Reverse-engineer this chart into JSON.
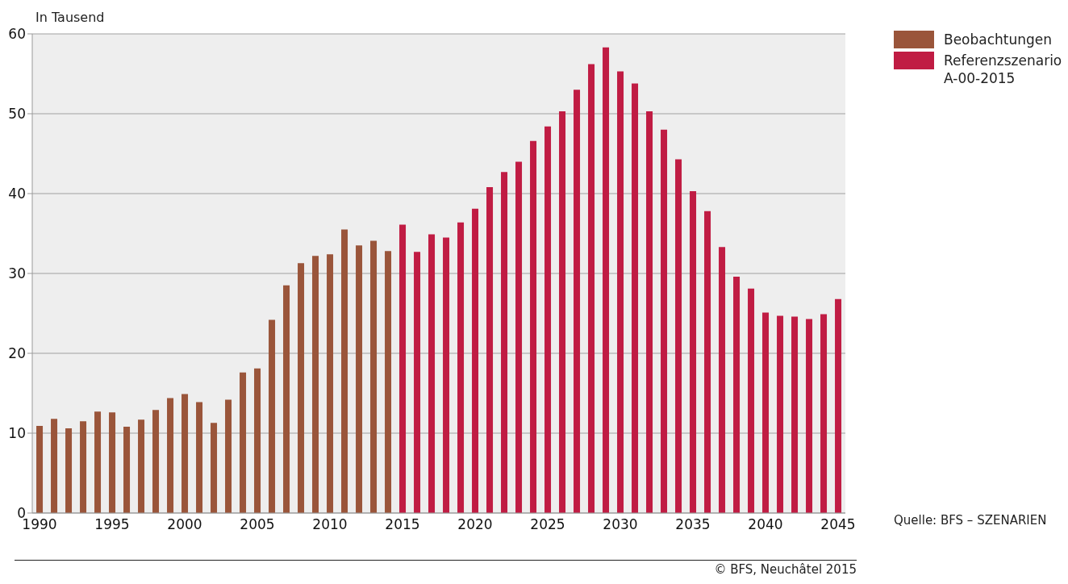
{
  "chart_data": {
    "type": "bar",
    "ylabel": "In Tausend",
    "categories": [
      "1990",
      null,
      null,
      null,
      null,
      "1995",
      null,
      null,
      null,
      null,
      "2000",
      null,
      null,
      null,
      null,
      "2005",
      null,
      null,
      null,
      null,
      "2010",
      null,
      null,
      null,
      null,
      "2015",
      null,
      null,
      null,
      null,
      "2020",
      null,
      null,
      null,
      null,
      "2025",
      null,
      null,
      null,
      null,
      "2030",
      null,
      null,
      null,
      null,
      "2035",
      null,
      null,
      null,
      null,
      "2040",
      null,
      null,
      null,
      null,
      "2045"
    ],
    "series": [
      {
        "name": "Beobachtungen",
        "color": "#9a553a",
        "values": [
          10.9,
          11.8,
          10.6,
          11.5,
          12.7,
          12.6,
          10.8,
          11.7,
          12.9,
          14.4,
          14.9,
          13.9,
          11.3,
          14.2,
          17.6,
          18.1,
          24.2,
          28.5,
          31.3,
          32.2,
          32.4,
          35.5,
          33.5,
          34.1,
          32.8,
          null,
          null,
          null,
          null,
          null,
          null,
          null,
          null,
          null,
          null,
          null,
          null,
          null,
          null,
          null,
          null,
          null,
          null,
          null,
          null,
          null,
          null,
          null,
          null,
          null,
          null,
          null,
          null,
          null,
          null,
          null
        ]
      },
      {
        "name": "Referenzszenario A-00-2015",
        "color": "#c01c43",
        "values": [
          null,
          null,
          null,
          null,
          null,
          null,
          null,
          null,
          null,
          null,
          null,
          null,
          null,
          null,
          null,
          null,
          null,
          null,
          null,
          null,
          null,
          null,
          null,
          null,
          null,
          36.1,
          32.7,
          34.9,
          34.5,
          36.4,
          38.1,
          40.8,
          42.7,
          44.0,
          46.6,
          48.4,
          50.3,
          53.0,
          56.2,
          58.3,
          55.3,
          53.8,
          50.3,
          48.0,
          44.3,
          40.3,
          37.8,
          33.3,
          29.6,
          28.1,
          25.1,
          24.7,
          24.6,
          24.3,
          24.9,
          26.8
        ]
      }
    ],
    "stacked": true,
    "ylim": [
      0,
      60
    ],
    "yticks": [
      0,
      10,
      20,
      30,
      40,
      50,
      60
    ],
    "grid": "y",
    "legend": "top right",
    "annotations": [
      "Quelle: BFS – SZENARIEN",
      "© BFS, Neuchâtel 2015"
    ]
  }
}
